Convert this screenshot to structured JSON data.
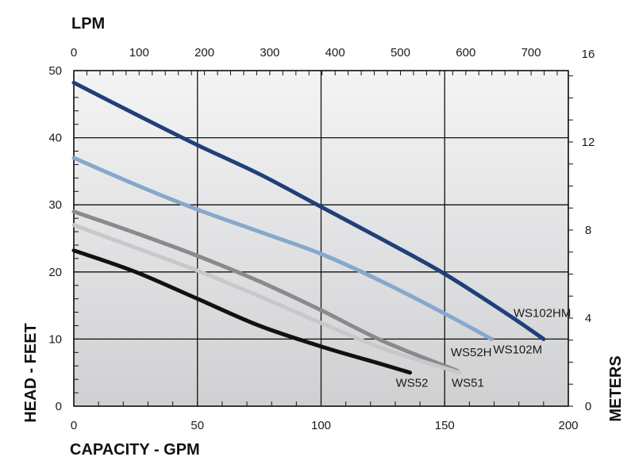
{
  "chart_data": {
    "type": "line",
    "xlabel": "CAPACITY - GPM",
    "ylabel": "HEAD - FEET",
    "x2label": "LPM",
    "y2label": "METERS",
    "xlim": [
      0,
      200
    ],
    "ylim": [
      0,
      50
    ],
    "x2lim": [
      0,
      757
    ],
    "y2lim": [
      0,
      15.24
    ],
    "xticks": [
      "0",
      "50",
      "100",
      "150",
      "200"
    ],
    "xtick_values": [
      0,
      50,
      100,
      150,
      200
    ],
    "yticks": [
      "0",
      "10",
      "20",
      "30",
      "40",
      "50"
    ],
    "ytick_values": [
      0,
      10,
      20,
      30,
      40,
      50
    ],
    "x2ticks": [
      "0",
      "100",
      "200",
      "300",
      "400",
      "500",
      "600",
      "700"
    ],
    "x2tick_values": [
      0,
      100,
      200,
      300,
      400,
      500,
      600,
      700
    ],
    "y2ticks": [
      "0",
      "4",
      "8",
      "12",
      "16"
    ],
    "y2tick_values": [
      0,
      4,
      8,
      12,
      16
    ],
    "grid": true,
    "series": [
      {
        "name": "WS102HM",
        "color": "#1f3f7a",
        "x": [
          0,
          25,
          50,
          75,
          100,
          125,
          150,
          175,
          190
        ],
        "y": [
          48.2,
          43.5,
          38.9,
          34.6,
          29.7,
          24.8,
          19.7,
          13.8,
          10.0
        ]
      },
      {
        "name": "WS102M",
        "color": "#86a8cc",
        "x": [
          0,
          25,
          50,
          75,
          100,
          125,
          150,
          169
        ],
        "y": [
          37.0,
          33.0,
          29.3,
          26.0,
          22.7,
          18.5,
          13.8,
          10.0
        ]
      },
      {
        "name": "WS52H",
        "color": "#8a8a8c",
        "x": [
          0,
          25,
          50,
          75,
          100,
          125,
          155
        ],
        "y": [
          29.0,
          25.8,
          22.4,
          18.6,
          14.3,
          9.7,
          5.3
        ]
      },
      {
        "name": "WS51",
        "color": "#c8c8ca",
        "x": [
          0,
          25,
          50,
          75,
          100,
          125,
          156
        ],
        "y": [
          27.0,
          23.6,
          20.2,
          16.4,
          12.4,
          8.6,
          5.0
        ]
      },
      {
        "name": "WS52",
        "color": "#111111",
        "x": [
          0,
          25,
          50,
          75,
          100,
          125,
          136
        ],
        "y": [
          23.2,
          20.0,
          16.0,
          12.0,
          8.9,
          6.2,
          5.0
        ]
      }
    ]
  }
}
